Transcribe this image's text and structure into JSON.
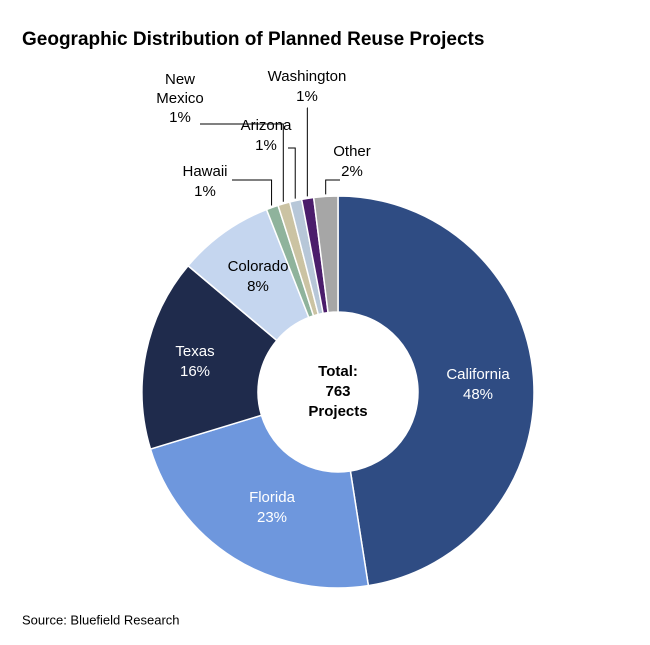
{
  "chart_data": {
    "type": "donut",
    "title": "Geographic Distribution of Planned Reuse Projects",
    "categories": [
      "California",
      "Florida",
      "Texas",
      "Colorado",
      "Hawaii",
      "New Mexico",
      "Arizona",
      "Washington",
      "Other"
    ],
    "values": [
      48,
      23,
      16,
      8,
      1,
      1,
      1,
      1,
      2
    ],
    "value_labels": [
      "48%",
      "23%",
      "16%",
      "8%",
      "1%",
      "1%",
      "1%",
      "1%",
      "2%"
    ],
    "colors": [
      "#2f4c83",
      "#6e97dd",
      "#1f2b4c",
      "#c5d6ef",
      "#8fb39c",
      "#cbc3a3",
      "#b7c7d8",
      "#4b1d6b",
      "#a6a6a6"
    ],
    "center_label": [
      "Total:",
      "763",
      "Projects"
    ],
    "source": "Source: Bluefield Research"
  }
}
